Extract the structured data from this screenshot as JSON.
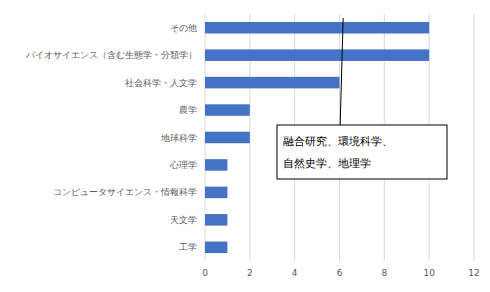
{
  "chart_data": {
    "type": "bar",
    "orientation": "horizontal",
    "categories": [
      "その他",
      "バイオサイエンス（含む生態学・分類学）",
      "社会科学・人文学",
      "農学",
      "地球科学",
      "心理学",
      "コンピュータサイエンス・情報科学",
      "天文学",
      "工学"
    ],
    "values": [
      10,
      10,
      6,
      2,
      2,
      1,
      1,
      1,
      1
    ],
    "color": "#4472c4",
    "xlim": [
      0,
      12
    ],
    "xticks": [
      0,
      2,
      4,
      6,
      8,
      10,
      12
    ],
    "grid": true,
    "annotations": [
      {
        "lines": [
          "融合研究、環境科学、",
          "自然史学、地理学"
        ],
        "category": "その他"
      }
    ]
  }
}
